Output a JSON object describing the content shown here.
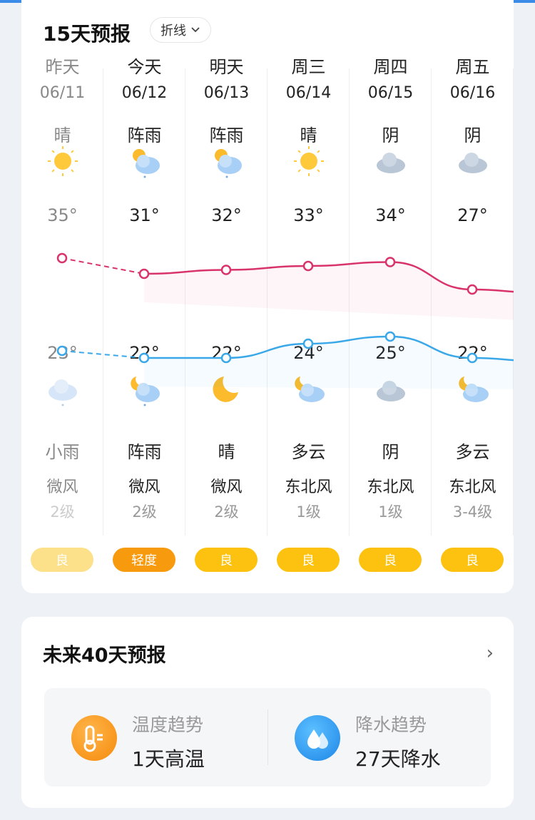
{
  "forecast15": {
    "title": "15天预报",
    "view_toggle": "折线",
    "days": [
      {
        "day": "昨天",
        "date": "06/11",
        "day_weather": "晴",
        "day_icon": "sun",
        "high": "35°",
        "high_value": 35,
        "low": "23°",
        "low_value": 23,
        "night_icon": "cloud-rain",
        "night_weather": "小雨",
        "wind": "微风",
        "wind_level": "2级",
        "aqi": "良",
        "aqi_color": "#fde08a",
        "past": true
      },
      {
        "day": "今天",
        "date": "06/12",
        "day_weather": "阵雨",
        "day_icon": "sun-cloud-rain",
        "high": "31°",
        "high_value": 31,
        "low": "22°",
        "low_value": 22,
        "night_icon": "moon-cloud-rain",
        "night_weather": "阵雨",
        "wind": "微风",
        "wind_level": "2级",
        "aqi": "轻度",
        "aqi_color": "#f79a0e"
      },
      {
        "day": "明天",
        "date": "06/13",
        "day_weather": "阵雨",
        "day_icon": "sun-cloud-rain",
        "high": "32°",
        "high_value": 32,
        "low": "22°",
        "low_value": 22,
        "night_icon": "moon",
        "night_weather": "晴",
        "wind": "微风",
        "wind_level": "2级",
        "aqi": "良",
        "aqi_color": "#fdc210"
      },
      {
        "day": "周三",
        "date": "06/14",
        "day_weather": "晴",
        "day_icon": "sun",
        "high": "33°",
        "high_value": 33,
        "low": "24°",
        "low_value": 24,
        "night_icon": "moon-cloud",
        "night_weather": "多云",
        "wind": "东北风",
        "wind_level": "1级",
        "aqi": "良",
        "aqi_color": "#fdc210"
      },
      {
        "day": "周四",
        "date": "06/15",
        "day_weather": "阴",
        "day_icon": "overcast",
        "high": "34°",
        "high_value": 34,
        "low": "25°",
        "low_value": 25,
        "night_icon": "overcast",
        "night_weather": "阴",
        "wind": "东北风",
        "wind_level": "1级",
        "aqi": "良",
        "aqi_color": "#fdc210"
      },
      {
        "day": "周五",
        "date": "06/16",
        "day_weather": "阴",
        "day_icon": "overcast",
        "high": "27°",
        "high_value": 27,
        "low": "22°",
        "low_value": 22,
        "night_icon": "moon-cloud",
        "night_weather": "多云",
        "wind": "东北风",
        "wind_level": "3-4级",
        "aqi": "良",
        "aqi_color": "#fdc210"
      }
    ],
    "high_line_color": "#d9336b",
    "low_line_color": "#3aa8e8"
  },
  "forecast40": {
    "title": "未来40天预报",
    "temp_trend": {
      "label": "温度趋势",
      "value": "1天高温",
      "icon": "thermometer"
    },
    "rain_trend": {
      "label": "降水趋势",
      "value": "27天降水",
      "icon": "water-drops"
    }
  }
}
